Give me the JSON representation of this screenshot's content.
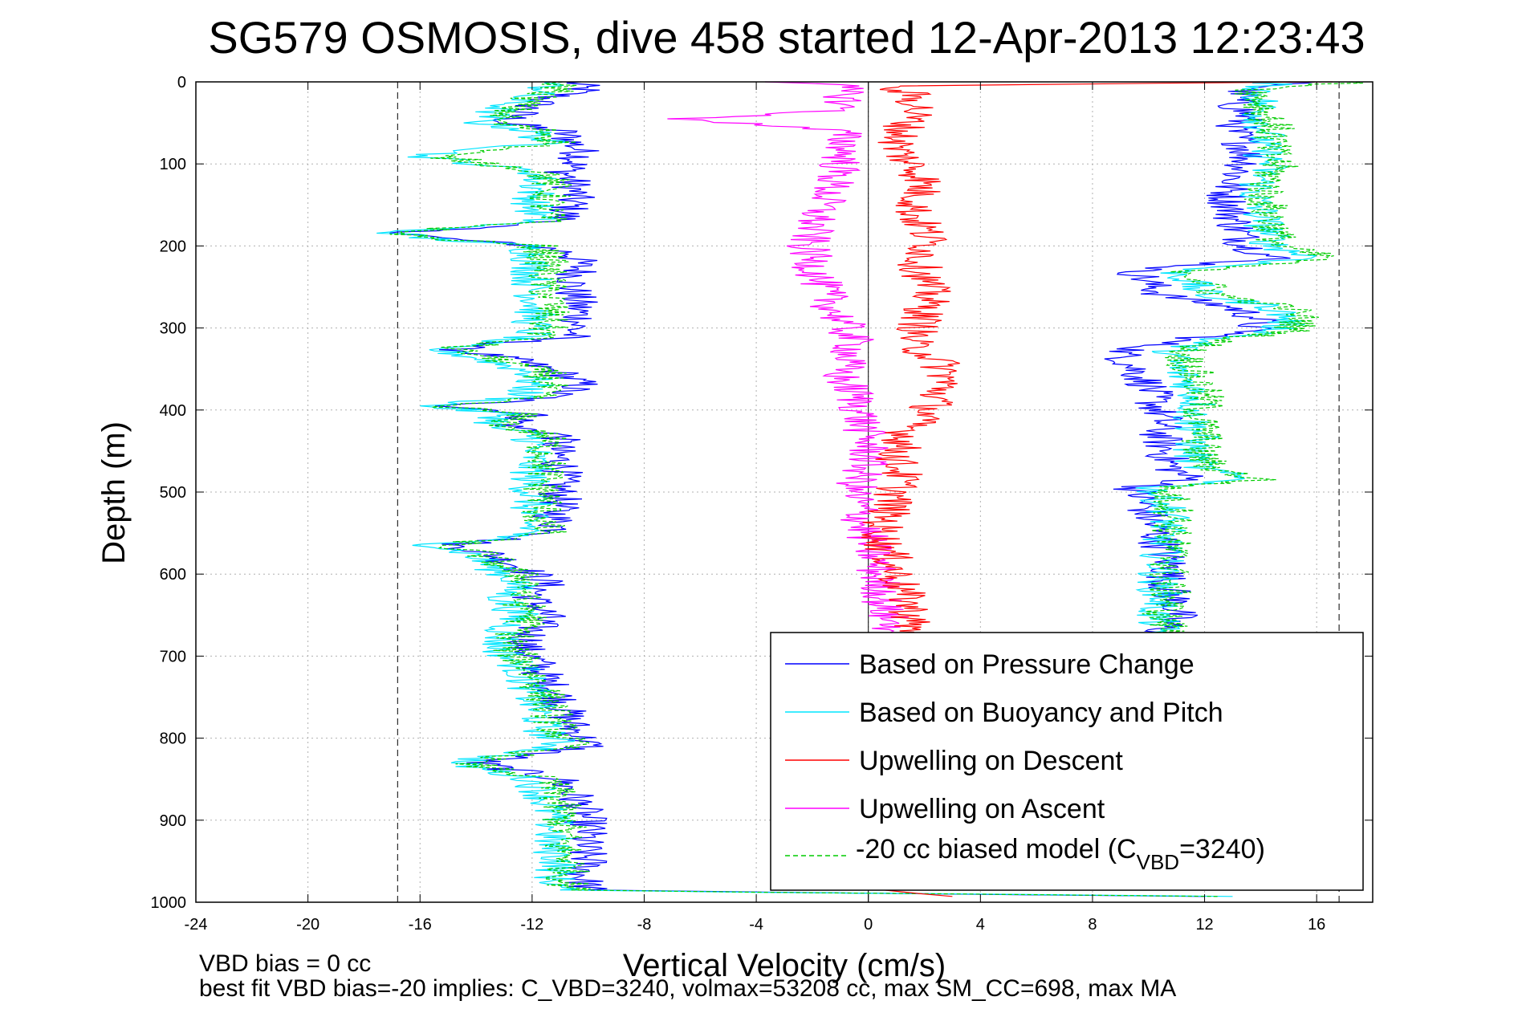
{
  "chart_data": {
    "type": "line",
    "title": "SG579 OSMOSIS, dive 458 started 12-Apr-2013 12:23:43",
    "xlabel": "Vertical Velocity (cm/s)",
    "ylabel": "Depth (m)",
    "xlim": [
      -24,
      18
    ],
    "ylim": [
      1000,
      0
    ],
    "y_reversed": true,
    "grid": true,
    "x_ticks": [
      "-24",
      "-20",
      "-16",
      "-12",
      "-8",
      "-4",
      "0",
      "4",
      "8",
      "12",
      "16"
    ],
    "y_ticks": [
      "0",
      "100",
      "200",
      "300",
      "400",
      "500",
      "600",
      "700",
      "800",
      "900",
      "1000"
    ],
    "reference_lines": {
      "vertical_dashed_x": [
        -16.8,
        16.8
      ],
      "vertical_solid_x": [
        0
      ]
    },
    "legend_position": "lower-right",
    "legend": [
      {
        "label": "Based on Pressure Change",
        "color": "#0000ff",
        "dash": "solid"
      },
      {
        "label": "Based on Buoyancy and Pitch",
        "color": "#00e5ff",
        "dash": "solid"
      },
      {
        "label": "Upwelling on Descent",
        "color": "#ff0000",
        "dash": "solid"
      },
      {
        "label": "Upwelling on Ascent",
        "color": "#ff00ff",
        "dash": "solid"
      },
      {
        "label_prefix": "-20 cc biased model (C",
        "label_sub": "VBD",
        "label_suffix": "=3240)",
        "color": "#00cc00",
        "dash": "dashed"
      }
    ],
    "series": [
      {
        "name": "Based on Pressure Change",
        "color": "#0000ff",
        "segments": [
          {
            "depth": [
              0,
              10,
              20,
              35,
              50,
              60,
              75,
              90,
              110,
              130,
              150,
              170,
              183,
              190,
              200,
              210,
              230,
              250,
              270,
              290,
              310,
              325,
              340,
              355,
              370,
              385,
              395,
              405,
              420,
              430,
              450,
              470,
              490,
              510,
              530,
              550,
              565,
              575,
              590,
              610,
              630,
              650,
              670,
              690,
              710,
              730,
              750,
              770,
              790,
              810,
              830,
              850,
              870,
              890,
              910,
              930,
              950,
              970,
              985
            ],
            "x": [
              -10.5,
              -10.2,
              -11.5,
              -12.3,
              -13.0,
              -11.0,
              -10.5,
              -10.2,
              -10.8,
              -10.5,
              -10.6,
              -11.0,
              -16.5,
              -15.5,
              -11.8,
              -10.5,
              -10.3,
              -10.6,
              -10.4,
              -10.3,
              -10.6,
              -14.8,
              -12.5,
              -11.0,
              -10.2,
              -11.5,
              -14.8,
              -12.0,
              -12.8,
              -11.0,
              -11.2,
              -10.9,
              -11.1,
              -11.0,
              -11.2,
              -11.0,
              -14.9,
              -13.5,
              -12.5,
              -11.5,
              -12.0,
              -11.5,
              -12.0,
              -12.3,
              -11.8,
              -11.5,
              -11.0,
              -10.8,
              -10.5,
              -10.0,
              -14.0,
              -11.0,
              -10.5,
              -10.2,
              -10.0,
              -10.2,
              -10.0,
              -10.2,
              -10.0
            ]
          },
          {
            "depth": [
              0,
              10,
              25,
              40,
              60,
              80,
              100,
              120,
              140,
              160,
              180,
              200,
              215,
              230,
              245,
              260,
              275,
              290,
              305,
              315,
              330,
              350,
              370,
              390,
              410,
              430,
              450,
              470,
              485,
              495,
              510,
              530,
              550,
              570,
              590,
              610,
              630,
              650,
              665,
              680
            ],
            "x": [
              15.5,
              13.5,
              13.0,
              13.5,
              13.0,
              13.5,
              13.5,
              13.0,
              12.8,
              13.0,
              13.2,
              13.5,
              14.5,
              9.5,
              10.0,
              10.5,
              13.0,
              14.0,
              13.5,
              11.0,
              9.0,
              9.5,
              10.0,
              10.2,
              10.5,
              10.4,
              10.6,
              10.8,
              11.5,
              9.5,
              9.8,
              10.0,
              10.3,
              10.5,
              10.8,
              10.6,
              10.9,
              11.0,
              10.5,
              10.5
            ]
          },
          {
            "depth": [
              985,
              988,
              990,
              993
            ],
            "x": [
              -10.0,
              -3.0,
              3.0,
              12.0
            ]
          }
        ]
      },
      {
        "name": "Based on Buoyancy and Pitch",
        "color": "#00e5ff",
        "segments": [
          {
            "depth": [
              0,
              10,
              20,
              35,
              50,
              60,
              75,
              90,
              110,
              130,
              150,
              170,
              183,
              190,
              200,
              210,
              230,
              250,
              270,
              290,
              310,
              325,
              340,
              355,
              370,
              385,
              395,
              405,
              420,
              430,
              450,
              470,
              490,
              510,
              530,
              550,
              565,
              575,
              590,
              610,
              630,
              650,
              670,
              690,
              710,
              730,
              750,
              770,
              790,
              810,
              830,
              850,
              870,
              890,
              910,
              930,
              950,
              970,
              985
            ],
            "x": [
              -11.5,
              -11.5,
              -12.5,
              -13.3,
              -13.8,
              -12.0,
              -11.5,
              -16.0,
              -11.8,
              -11.8,
              -12.0,
              -11.8,
              -17.0,
              -16.0,
              -12.2,
              -12.0,
              -12.0,
              -12.0,
              -11.8,
              -12.0,
              -12.0,
              -15.6,
              -13.5,
              -12.0,
              -12.0,
              -12.5,
              -15.8,
              -13.0,
              -13.5,
              -12.0,
              -12.0,
              -12.0,
              -12.1,
              -12.0,
              -12.2,
              -12.0,
              -15.5,
              -14.2,
              -13.5,
              -12.5,
              -13.0,
              -12.5,
              -13.0,
              -13.2,
              -12.5,
              -12.2,
              -12.0,
              -11.8,
              -11.6,
              -11.0,
              -14.8,
              -12.0,
              -11.6,
              -11.4,
              -11.2,
              -11.4,
              -11.0,
              -11.2,
              -11.0
            ]
          },
          {
            "depth": [
              0,
              10,
              25,
              40,
              60,
              80,
              100,
              120,
              140,
              160,
              180,
              200,
              215,
              230,
              245,
              260,
              275,
              290,
              305,
              315,
              330,
              350,
              370,
              390,
              410,
              430,
              450,
              470,
              485,
              495,
              510,
              530,
              550,
              570,
              590,
              610,
              630,
              650,
              665,
              680
            ],
            "x": [
              14.5,
              14.0,
              14.0,
              14.0,
              14.2,
              14.0,
              14.3,
              14.0,
              13.8,
              14.0,
              14.2,
              14.4,
              16.0,
              11.0,
              11.5,
              12.0,
              14.5,
              15.0,
              14.5,
              12.0,
              10.8,
              11.0,
              11.5,
              11.8,
              11.5,
              11.8,
              11.5,
              11.8,
              13.5,
              10.2,
              10.5,
              10.8,
              10.5,
              10.5,
              10.5,
              10.3,
              10.5,
              10.2,
              10.4,
              10.5
            ]
          },
          {
            "depth": [
              985,
              988,
              990,
              993
            ],
            "x": [
              -11.0,
              -4.0,
              4.0,
              13.0
            ]
          }
        ]
      },
      {
        "name": "Upwelling on Descent",
        "color": "#ff0000",
        "segments": [
          {
            "depth": [
              0,
              5,
              15,
              30,
              45,
              60,
              80,
              100,
              120,
              140,
              160,
              180,
              200,
              220,
              240,
              260,
              280,
              300,
              320,
              340,
              360,
              380,
              400,
              420,
              440,
              460,
              480,
              500,
              520,
              540,
              560,
              580,
              600,
              620,
              640,
              660,
              680
            ],
            "x": [
              16.0,
              0.5,
              1.5,
              1.8,
              1.5,
              1.2,
              1.0,
              1.5,
              2.0,
              1.8,
              1.6,
              2.0,
              2.2,
              1.8,
              2.0,
              2.2,
              2.0,
              1.8,
              1.5,
              2.5,
              2.8,
              2.5,
              2.2,
              1.5,
              1.2,
              1.0,
              1.2,
              1.0,
              0.8,
              0.5,
              0.5,
              0.8,
              1.0,
              1.2,
              1.5,
              1.5,
              1.5
            ]
          },
          {
            "depth": [
              985,
              990,
              993
            ],
            "x": [
              0.5,
              2.0,
              3.0
            ]
          }
        ]
      },
      {
        "name": "Upwelling on Ascent",
        "color": "#ff00ff",
        "segments": [
          {
            "depth": [
              0,
              5,
              20,
              35,
              45,
              60,
              80,
              100,
              120,
              140,
              160,
              180,
              200,
              220,
              240,
              260,
              280,
              300,
              320,
              340,
              360,
              380,
              400,
              420,
              440,
              460,
              480,
              500,
              520,
              540,
              560,
              580,
              600,
              620,
              640,
              660,
              680
            ],
            "x": [
              -3.0,
              -1.0,
              -0.8,
              -1.0,
              -6.5,
              -1.0,
              -0.8,
              -1.0,
              -1.2,
              -1.5,
              -1.8,
              -2.0,
              -2.2,
              -2.0,
              -1.8,
              -1.5,
              -1.2,
              -0.8,
              -0.5,
              -0.8,
              -1.0,
              -0.5,
              -0.3,
              -0.2,
              0.0,
              0.0,
              -0.3,
              -0.5,
              -0.3,
              -0.2,
              0.0,
              0.2,
              0.3,
              0.5,
              0.5,
              0.8,
              1.0
            ]
          }
        ]
      },
      {
        "name": "-20 cc biased model (C_VBD=3240)",
        "color": "#00cc00",
        "dashed": true,
        "segments": [
          {
            "depth": [
              0,
              10,
              20,
              35,
              50,
              60,
              75,
              90,
              110,
              130,
              150,
              170,
              183,
              190,
              200,
              210,
              230,
              250,
              270,
              290,
              310,
              325,
              340,
              355,
              370,
              385,
              395,
              405,
              420,
              430,
              450,
              470,
              490,
              510,
              530,
              550,
              565,
              575,
              590,
              610,
              630,
              650,
              670,
              690,
              710,
              730,
              750,
              770,
              790,
              810,
              830,
              850,
              870,
              890,
              910,
              930,
              950,
              970,
              985
            ],
            "x": [
              -11.0,
              -11.0,
              -12.0,
              -12.8,
              -13.3,
              -11.5,
              -11.0,
              -15.5,
              -11.5,
              -11.3,
              -11.5,
              -11.5,
              -16.8,
              -15.8,
              -11.8,
              -11.5,
              -11.5,
              -11.5,
              -11.3,
              -11.5,
              -11.5,
              -15.0,
              -13.0,
              -11.5,
              -11.5,
              -12.0,
              -15.2,
              -12.5,
              -13.0,
              -11.5,
              -11.5,
              -11.5,
              -11.6,
              -11.5,
              -11.7,
              -11.5,
              -15.2,
              -13.8,
              -13.0,
              -12.0,
              -12.5,
              -12.0,
              -12.5,
              -12.8,
              -12.2,
              -11.8,
              -11.5,
              -11.3,
              -11.1,
              -10.6,
              -14.4,
              -11.5,
              -11.1,
              -11.0,
              -10.8,
              -11.0,
              -10.6,
              -10.8,
              -10.6
            ]
          },
          {
            "depth": [
              0,
              10,
              25,
              40,
              60,
              80,
              100,
              120,
              140,
              160,
              180,
              200,
              215,
              230,
              245,
              260,
              275,
              290,
              305,
              315,
              330,
              350,
              370,
              390,
              410,
              430,
              450,
              470,
              485,
              495,
              510,
              530,
              550,
              570,
              590,
              610,
              630,
              650,
              665,
              680
            ],
            "x": [
              17.5,
              13.8,
              14.0,
              14.2,
              14.5,
              14.3,
              14.6,
              14.3,
              14.1,
              14.3,
              14.5,
              14.6,
              16.5,
              11.5,
              12.0,
              12.5,
              15.0,
              15.5,
              15.0,
              12.5,
              11.2,
              11.5,
              11.8,
              12.0,
              11.8,
              12.0,
              11.8,
              12.2,
              14.0,
              10.5,
              10.8,
              11.0,
              10.8,
              10.8,
              10.8,
              10.6,
              10.8,
              10.5,
              10.7,
              10.8
            ]
          },
          {
            "depth": [
              985,
              988,
              990,
              993
            ],
            "x": [
              -10.6,
              -3.5,
              3.5,
              12.5
            ]
          }
        ]
      }
    ]
  },
  "footer": {
    "line1": "VBD bias = 0 cc",
    "line2": "best fit VBD bias=-20 implies: C_VBD=3240, volmax=53208 cc, max SM_CC=698, max MA"
  }
}
